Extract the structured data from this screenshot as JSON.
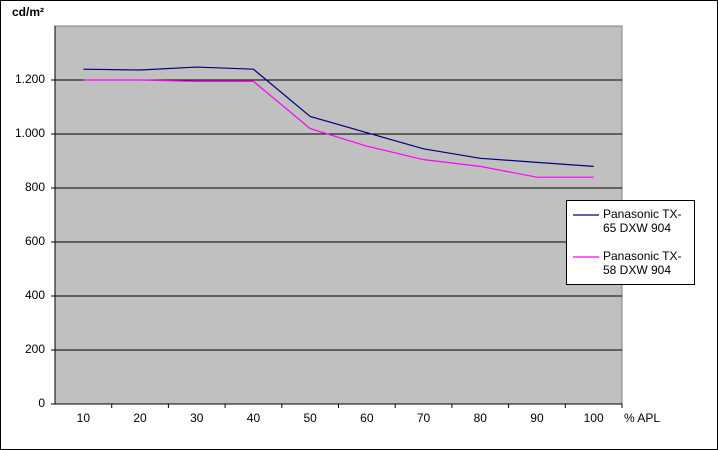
{
  "chart_data": {
    "type": "line",
    "y_label": "cd/m²",
    "x_label": "% APL",
    "categories": [
      "10",
      "20",
      "30",
      "40",
      "50",
      "60",
      "70",
      "80",
      "90",
      "100"
    ],
    "series": [
      {
        "name": "Panasonic TX-65 DXW 904",
        "color": "#000080",
        "values": [
          1240,
          1237,
          1248,
          1240,
          1065,
          1005,
          945,
          910,
          895,
          880
        ]
      },
      {
        "name": "Panasonic TX-58 DXW 904",
        "color": "#ff00ff",
        "values": [
          1200,
          1200,
          1195,
          1195,
          1020,
          955,
          905,
          880,
          840,
          840
        ]
      }
    ],
    "ylim": [
      0,
      1400
    ],
    "yticks": [
      0,
      200,
      400,
      600,
      800,
      {
        "value": 1000,
        "label": "1.000"
      },
      {
        "value": 1200,
        "label": "1.200"
      }
    ],
    "grid": true,
    "legend": "right",
    "plot_background": "#c0c0c0"
  }
}
